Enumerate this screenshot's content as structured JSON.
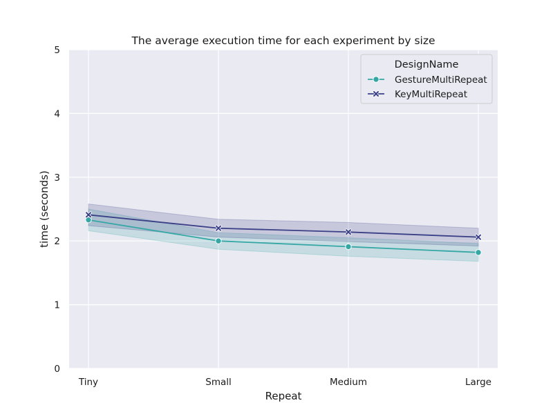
{
  "chart_data": {
    "type": "line",
    "title": "The average execution time for each experiment by size",
    "xlabel": "Repeat",
    "ylabel": "time (seconds)",
    "categories": [
      "Tiny",
      "Small",
      "Medium",
      "Large"
    ],
    "ylim": [
      0,
      5
    ],
    "yticks": [
      "0",
      "1",
      "2",
      "3",
      "4",
      "5"
    ],
    "grid": true,
    "legend": {
      "title": "DesignName",
      "position": "top-right"
    },
    "series": [
      {
        "name": "GestureMultiRepeat",
        "marker": "circle",
        "color": "#35A7A5",
        "values": [
          2.33,
          2.0,
          1.91,
          1.82
        ],
        "ci_lower": [
          2.16,
          1.87,
          1.76,
          1.68
        ],
        "ci_upper": [
          2.5,
          2.13,
          2.05,
          1.96
        ]
      },
      {
        "name": "KeyMultiRepeat",
        "marker": "x",
        "color": "#3A3F86",
        "values": [
          2.41,
          2.2,
          2.14,
          2.06
        ],
        "ci_lower": [
          2.24,
          2.06,
          1.99,
          1.92
        ],
        "ci_upper": [
          2.58,
          2.34,
          2.29,
          2.2
        ]
      }
    ]
  }
}
